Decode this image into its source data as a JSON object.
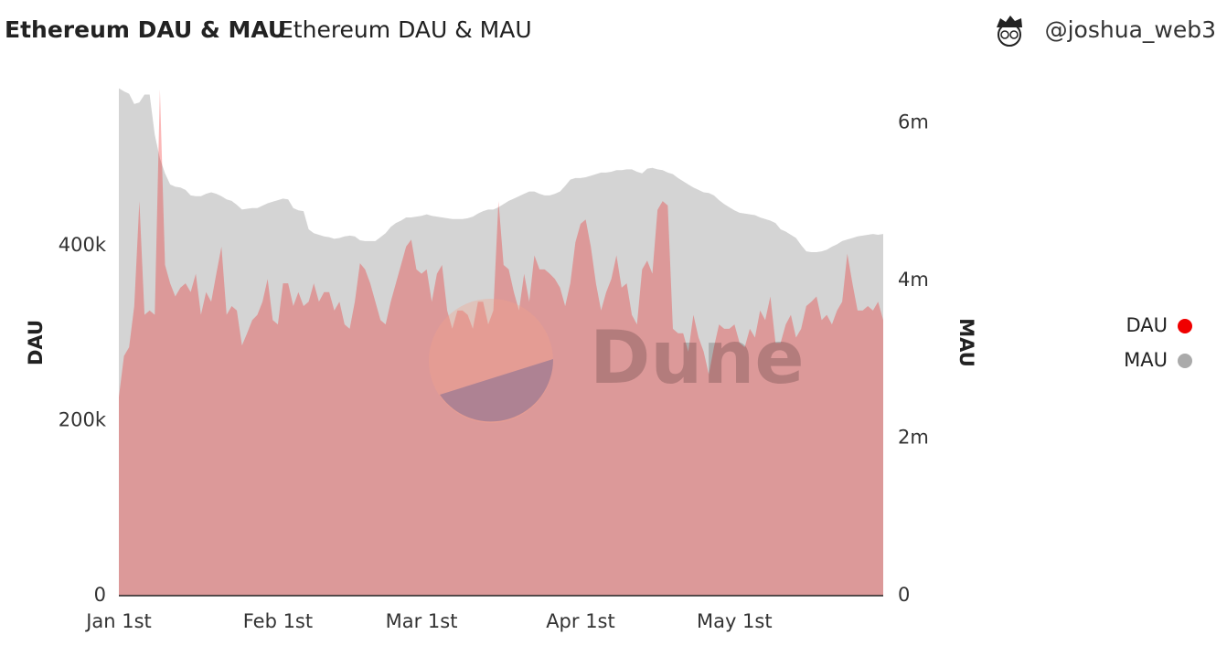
{
  "header": {
    "title": "Ethereum DAU & MAU",
    "subtitle": "Ethereum DAU & MAU",
    "author": "@joshua_web3"
  },
  "watermark": "Dune",
  "chart_data": {
    "type": "area",
    "y_label": "DAU",
    "y2_label": "MAU",
    "categories": [
      "Jan 1st",
      null,
      null,
      null,
      null,
      null,
      null,
      null,
      null,
      null,
      null,
      null,
      null,
      null,
      null,
      null,
      null,
      null,
      null,
      null,
      null,
      null,
      null,
      null,
      null,
      null,
      null,
      null,
      null,
      null,
      null,
      "Feb 1st",
      null,
      null,
      null,
      null,
      null,
      null,
      null,
      null,
      null,
      null,
      null,
      null,
      null,
      null,
      null,
      null,
      null,
      null,
      null,
      null,
      null,
      null,
      null,
      null,
      null,
      null,
      null,
      "Mar 1st",
      null,
      null,
      null,
      null,
      null,
      null,
      null,
      null,
      null,
      null,
      null,
      null,
      null,
      null,
      null,
      null,
      null,
      null,
      null,
      null,
      null,
      null,
      null,
      null,
      null,
      null,
      null,
      null,
      null,
      null,
      "Apr 1st",
      null,
      null,
      null,
      null,
      null,
      null,
      null,
      null,
      null,
      null,
      null,
      null,
      null,
      null,
      null,
      null,
      null,
      null,
      null,
      null,
      null,
      null,
      null,
      null,
      null,
      null,
      null,
      null,
      null,
      "May 1st",
      null,
      null,
      null,
      null,
      null,
      null,
      null,
      null,
      null,
      null,
      null,
      null,
      null,
      null,
      null,
      null,
      null,
      null,
      null,
      null,
      null,
      null,
      null,
      null,
      null,
      null,
      null,
      null,
      null
    ],
    "series": [
      {
        "name": "MAU",
        "color": "#aaaaaa",
        "axis": "y2",
        "values": [
          6440000,
          6400000,
          6370000,
          6240000,
          6260000,
          6360000,
          6360000,
          5850000,
          5550000,
          5360000,
          5220000,
          5190000,
          5180000,
          5150000,
          5080000,
          5070000,
          5070000,
          5100000,
          5120000,
          5100000,
          5070000,
          5030000,
          5010000,
          4960000,
          4900000,
          4910000,
          4920000,
          4920000,
          4950000,
          4980000,
          5000000,
          5020000,
          5040000,
          5030000,
          4920000,
          4890000,
          4880000,
          4650000,
          4600000,
          4580000,
          4560000,
          4550000,
          4530000,
          4540000,
          4560000,
          4570000,
          4560000,
          4510000,
          4500000,
          4500000,
          4500000,
          4550000,
          4600000,
          4680000,
          4730000,
          4760000,
          4800000,
          4800000,
          4810000,
          4820000,
          4840000,
          4820000,
          4810000,
          4800000,
          4790000,
          4780000,
          4780000,
          4780000,
          4790000,
          4810000,
          4850000,
          4880000,
          4900000,
          4900000,
          4930000,
          4970000,
          5010000,
          5040000,
          5070000,
          5100000,
          5130000,
          5130000,
          5100000,
          5080000,
          5080000,
          5100000,
          5130000,
          5200000,
          5280000,
          5300000,
          5300000,
          5310000,
          5330000,
          5350000,
          5370000,
          5370000,
          5380000,
          5400000,
          5400000,
          5410000,
          5410000,
          5380000,
          5360000,
          5420000,
          5430000,
          5410000,
          5400000,
          5370000,
          5350000,
          5300000,
          5260000,
          5220000,
          5180000,
          5150000,
          5120000,
          5110000,
          5080000,
          5020000,
          4970000,
          4930000,
          4890000,
          4860000,
          4850000,
          4840000,
          4830000,
          4800000,
          4780000,
          4760000,
          4730000,
          4650000,
          4620000,
          4580000,
          4540000,
          4450000,
          4370000,
          4360000,
          4360000,
          4370000,
          4390000,
          4430000,
          4460000,
          4500000,
          4520000,
          4540000,
          4560000,
          4570000,
          4580000,
          4590000,
          4580000,
          4590000
        ]
      },
      {
        "name": "DAU",
        "color": "#f00000",
        "axis": "y",
        "values": [
          227000,
          274000,
          284000,
          331000,
          451000,
          321000,
          326000,
          321000,
          579000,
          378000,
          357000,
          342000,
          352000,
          357000,
          347000,
          368000,
          321000,
          347000,
          336000,
          368000,
          399000,
          321000,
          331000,
          326000,
          286000,
          300000,
          315000,
          321000,
          336000,
          362000,
          315000,
          310000,
          357000,
          357000,
          331000,
          347000,
          331000,
          336000,
          357000,
          336000,
          347000,
          347000,
          326000,
          336000,
          310000,
          305000,
          336000,
          380000,
          373000,
          357000,
          336000,
          315000,
          310000,
          336000,
          357000,
          378000,
          399000,
          407000,
          373000,
          368000,
          373000,
          336000,
          368000,
          378000,
          326000,
          305000,
          326000,
          326000,
          321000,
          305000,
          336000,
          336000,
          310000,
          326000,
          451000,
          378000,
          373000,
          347000,
          326000,
          368000,
          336000,
          389000,
          373000,
          373000,
          368000,
          362000,
          352000,
          331000,
          357000,
          404000,
          425000,
          430000,
          399000,
          357000,
          326000,
          347000,
          362000,
          389000,
          352000,
          357000,
          321000,
          310000,
          373000,
          383000,
          368000,
          441000,
          451000,
          446000,
          305000,
          300000,
          300000,
          279000,
          321000,
          295000,
          279000,
          253000,
          284000,
          310000,
          305000,
          305000,
          310000,
          289000,
          284000,
          305000,
          295000,
          326000,
          315000,
          342000,
          289000,
          289000,
          310000,
          321000,
          295000,
          305000,
          331000,
          336000,
          342000,
          315000,
          321000,
          310000,
          326000,
          336000,
          391000,
          357000,
          326000,
          326000,
          331000,
          326000,
          336000,
          315000
        ]
      }
    ],
    "ylim": [
      0,
      580000
    ],
    "yticks": [
      0,
      {
        "value": 200000,
        "label": "200k"
      },
      {
        "value": 400000,
        "label": "400k"
      }
    ],
    "y2lim": [
      0,
      6440000
    ],
    "y2ticks": [
      0,
      {
        "value": 2000000,
        "label": "2m"
      },
      {
        "value": 4000000,
        "label": "4m"
      },
      {
        "value": 6000000,
        "label": "6m"
      }
    ],
    "legend": "right"
  }
}
